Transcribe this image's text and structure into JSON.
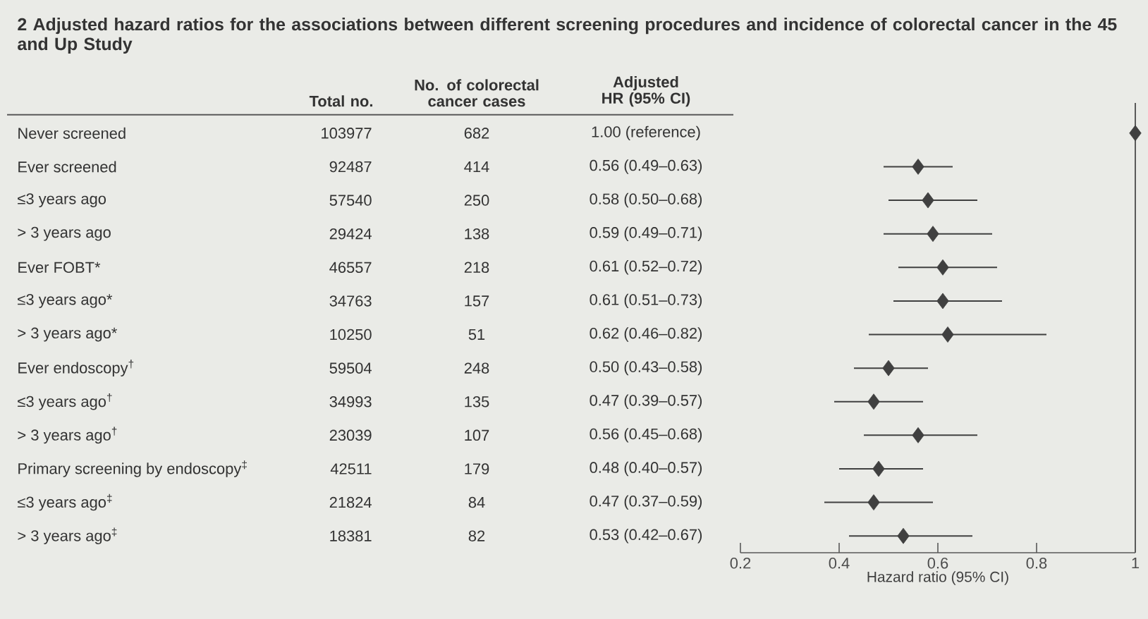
{
  "chart_data": [
    {
      "type": "other",
      "title": "2 Adjusted hazard ratios for the associations between different screening procedures and incidence of colorectal cancer in the 45 and Up Study",
      "categories": [
        "Never screened",
        "Ever screened",
        "≤3 years ago",
        "> 3 years ago",
        "Ever FOBT*",
        "≤3 years ago*",
        "> 3 years ago*",
        "Ever endoscopy$^{†}$",
        "≤3 years ago$^{†}$",
        "> 3 years ago$^{†}$",
        "Primary screening by endoscopy$^{‡}$",
        "≤3 years ago$^{‡}$",
        "> 3 years ago$^{‡}$"
      ],
      "series": [
        {
          "name": "Total no.",
          "values": [
            103977,
            92487,
            57540,
            29424,
            46557,
            34763,
            10250,
            59504,
            34993,
            23039,
            42511,
            21824,
            18381
          ],
          "value_labels": [
            "103977",
            "92487",
            "57540",
            "29424",
            "46557",
            "34763",
            "10250",
            "59504",
            "34993",
            "23039",
            "42511",
            "21824",
            "18381"
          ]
        },
        {
          "name": "No. of colorectal cancer cases",
          "values": [
            682,
            414,
            250,
            138,
            218,
            157,
            51,
            248,
            135,
            107,
            179,
            84,
            82
          ],
          "value_labels": [
            "682",
            "414",
            "250",
            "138",
            "218",
            "157",
            "51",
            "248",
            "135",
            "107",
            "179",
            "84",
            "82"
          ]
        },
        {
          "name": "Adjusted HR (95% CI)",
          "values": [
            1.0,
            0.56,
            0.58,
            0.59,
            0.61,
            0.61,
            0.62,
            0.5,
            0.47,
            0.56,
            0.48,
            0.47,
            0.53
          ],
          "value_labels": [
            "1.00 (reference)",
            "0.56 (0.49–0.63)",
            "0.58 (0.50–0.68)",
            "0.59 (0.49–0.71)",
            "0.61 (0.52–0.72)",
            "0.61 (0.51–0.73)",
            "0.62 (0.46–0.82)",
            "0.50 (0.43–0.58)",
            "0.47 (0.39–0.57)",
            "0.56 (0.45–0.68)",
            "0.48 (0.40–0.57)",
            "0.47 (0.37–0.59)",
            "0.53 (0.42–0.67)"
          ]
        }
      ]
    },
    {
      "type": "scatter",
      "orientation": "horizontal",
      "tick_labels": "x",
      "marker": "diamond",
      "categories": [
        null,
        null,
        null,
        null,
        null,
        null,
        null,
        null,
        null,
        null,
        null,
        null,
        null
      ],
      "series": [
        {
          "color": "#404040",
          "values": [
            1.0,
            0.56,
            0.58,
            0.59,
            0.61,
            0.61,
            0.62,
            0.5,
            0.47,
            0.56,
            0.48,
            0.47,
            0.53
          ],
          "errors": [
            null,
            [
              0.49,
              0.63
            ],
            [
              0.5,
              0.68
            ],
            [
              0.49,
              0.71
            ],
            [
              0.52,
              0.72
            ],
            [
              0.51,
              0.73
            ],
            [
              0.46,
              0.82
            ],
            [
              0.43,
              0.58
            ],
            [
              0.39,
              0.57
            ],
            [
              0.45,
              0.68
            ],
            [
              0.4,
              0.57
            ],
            [
              0.37,
              0.59
            ],
            [
              0.42,
              0.67
            ]
          ]
        }
      ],
      "xlim": [
        0.2,
        1
      ],
      "xticks": [
        0.2,
        0.4,
        0.6,
        0.8,
        1
      ],
      "xlabel": "Hazard ratio (95% CI)",
      "ref_lines": [
        {
          "axis": "x",
          "value": 1
        }
      ]
    }
  ]
}
